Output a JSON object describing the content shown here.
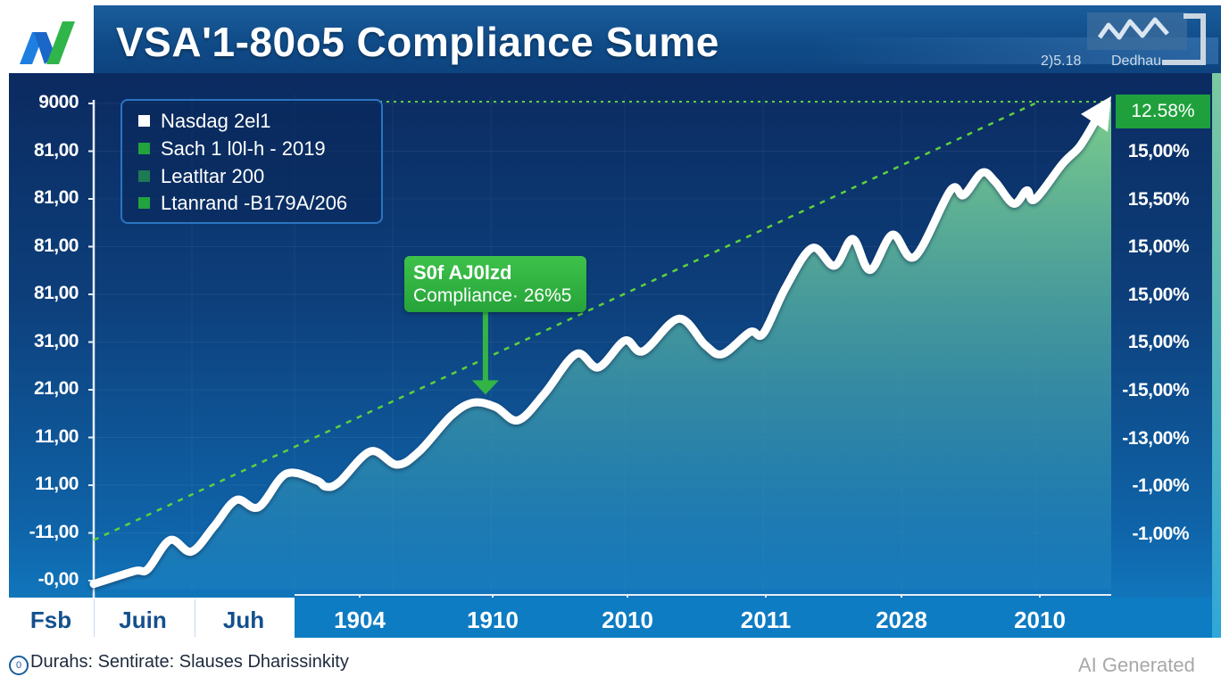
{
  "header": {
    "title": "VSA'1-80o5 Compliance Sume",
    "logo_icon": "chart-logo-icon",
    "badge": {
      "icon": "wave-logo-icon",
      "value": "2)5.18",
      "label": "Dedhau"
    }
  },
  "legend": {
    "items": [
      {
        "label": "Nasdag 2el1",
        "color": "#ffffff"
      },
      {
        "label": "Sach 1 l0l-h - 2019",
        "color": "#22a33d"
      },
      {
        "label": "Leatltar 200",
        "color": "#1d7a52"
      },
      {
        "label": "Ltanrand -B179A/206",
        "color": "#22a33d"
      }
    ]
  },
  "annotation": {
    "line1": "S0f AJ0lzd",
    "line2": "Compliance· 26%5",
    "color": "#33b545"
  },
  "current_value": {
    "label": "12.58%",
    "color": "#1fa03c"
  },
  "footer": {
    "icon": "info-circle-icon",
    "icon_text": "0",
    "note": "Durahs: Sentirate: Slauses Dharissinkity"
  },
  "watermark": "AI Generated",
  "colors": {
    "line": "#ffffff",
    "trend": "#5fd23c",
    "fill_top": "#7ccf8c",
    "fill_bottom": "#1a7fc0",
    "panel_dark": "#0b2a60",
    "panel_light": "#1280c6",
    "accent_green": "#22a33d"
  },
  "chart_data": {
    "type": "area",
    "title": "VSA'1-80o5 Compliance Sume",
    "xlabel": "",
    "ylabel": "",
    "y_tick_labels_left": [
      "9000",
      "81,00",
      "81,00",
      "81,00",
      "81,00",
      "31,00",
      "21,00",
      "11,00",
      "11,00",
      "-11,00",
      "-0,00"
    ],
    "y_tick_labels_right": [
      "12.58%",
      "15,00%",
      "15,50%",
      "15,00%",
      "15,00%",
      "15,00%",
      "-15,00%",
      "-13,00%",
      "-1,00%",
      "-1,00%"
    ],
    "x_tick_labels": [
      "Fsb",
      "Juin",
      "Juh",
      "1904",
      "1910",
      "2010",
      "2011",
      "2028",
      "2010"
    ],
    "ylim_index": [
      0,
      10
    ],
    "xlim_index": [
      0,
      100
    ],
    "legend_position": "top-left",
    "grid": true,
    "series": [
      {
        "name": "Nasdag 2el1",
        "x": [
          0,
          4,
          5.3,
          7.5,
          9.6,
          11.8,
          14,
          16.2,
          18.9,
          21.9,
          22.8,
          24.1,
          27.2,
          29.8,
          32,
          35.1,
          37.3,
          39.5,
          41.7,
          44.3,
          47.4,
          49.6,
          52.2,
          54,
          57.5,
          60.1,
          61.8,
          64.5,
          65.8,
          68,
          70.6,
          72.8,
          74.6,
          76.3,
          78.5,
          80.7,
          84.2,
          85.5,
          87.3,
          88.6,
          90.4,
          91.7,
          92.5,
          95.2,
          96.9,
          100
        ],
        "values": [
          -0.07,
          0.2,
          0.24,
          0.85,
          0.61,
          1.13,
          1.69,
          1.54,
          2.24,
          2.1,
          1.97,
          2.06,
          2.71,
          2.43,
          2.71,
          3.45,
          3.73,
          3.64,
          3.36,
          3.92,
          4.75,
          4.47,
          5.03,
          4.81,
          5.49,
          4.94,
          4.75,
          5.21,
          5.18,
          6.14,
          6.97,
          6.6,
          7.16,
          6.51,
          7.25,
          6.79,
          8.18,
          8.08,
          8.55,
          8.36,
          7.9,
          8.18,
          7.99,
          8.73,
          9.1,
          10.04
        ]
      },
      {
        "name": "Trend",
        "style": "dashed",
        "x": [
          0,
          92.5,
          100
        ],
        "values": [
          0.85,
          10.0,
          10.0
        ]
      }
    ],
    "annotations": [
      {
        "text": "S0f AJ0lzd / Compliance· 26%5",
        "x": 38.5,
        "y": 3.9,
        "arrow": "down"
      },
      {
        "text": "12.58%",
        "x": 100,
        "y": 10.0
      }
    ]
  }
}
